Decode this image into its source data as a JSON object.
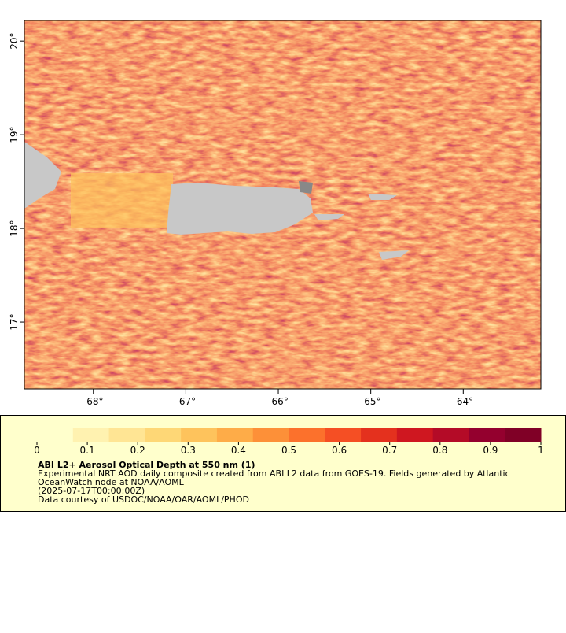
{
  "map": {
    "xlim": [
      -68.746,
      -63.161
    ],
    "ylim": [
      16.286,
      20.22
    ],
    "xticks": [
      {
        "value": -68,
        "label": "-68°"
      },
      {
        "value": -67,
        "label": "-67°"
      },
      {
        "value": -66,
        "label": "-66°"
      },
      {
        "value": -65,
        "label": "-65°"
      },
      {
        "value": -64,
        "label": "-64°"
      }
    ],
    "yticks": [
      {
        "value": 17,
        "label": "17°"
      },
      {
        "value": 18,
        "label": "18°"
      },
      {
        "value": 19,
        "label": "19°"
      },
      {
        "value": 20,
        "label": "20°"
      }
    ]
  },
  "colorbar": {
    "lim": [
      0,
      1
    ],
    "ticks": [
      0,
      0.1,
      0.2,
      0.3,
      0.4,
      0.5,
      0.6,
      0.7,
      0.8,
      0.9,
      1
    ],
    "colors": [
      "#ffffcc",
      "#fff2b0",
      "#ffe594",
      "#fed776",
      "#fec35c",
      "#feac48",
      "#fd9038",
      "#fc712c",
      "#f54f24",
      "#e4311e",
      "#cf1720",
      "#b40b27",
      "#94002e",
      "#800026"
    ]
  },
  "caption": {
    "title": "ABI L2+ Aerosol Optical Depth at 550 nm (1)",
    "line1": "Experimental NRT AOD daily composite created from ABI L2 data from GOES-19. Fields generated by Atlantic",
    "line2": "OceanWatch node at NOAA/AOML",
    "line3": "(2025-07-17T00:00:00Z)",
    "line4": "Data courtesy of USDOC/NOAA/OAR/AOML/PHOD"
  }
}
